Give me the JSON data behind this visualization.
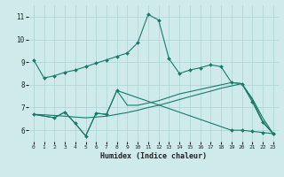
{
  "xlabel": "Humidex (Indice chaleur)",
  "bg_color": "#ceeaea",
  "grid_color": "#aad4d4",
  "line_color": "#1a7a6a",
  "xlim": [
    -0.5,
    23.5
  ],
  "ylim": [
    5.5,
    11.5
  ],
  "yticks": [
    6,
    7,
    8,
    9,
    10,
    11
  ],
  "xticks": [
    0,
    1,
    2,
    3,
    4,
    5,
    6,
    7,
    8,
    9,
    10,
    11,
    12,
    13,
    14,
    15,
    16,
    17,
    18,
    19,
    20,
    21,
    22,
    23
  ],
  "line1_x": [
    0,
    1,
    2,
    3,
    4,
    5,
    6,
    7,
    8,
    9,
    10,
    11,
    12,
    13,
    14,
    15,
    16,
    17,
    18,
    19,
    20,
    21,
    22,
    23
  ],
  "line1_y": [
    9.1,
    8.3,
    8.4,
    8.55,
    8.65,
    8.8,
    8.95,
    9.1,
    9.25,
    9.4,
    9.85,
    11.1,
    10.85,
    9.15,
    8.5,
    8.65,
    8.75,
    8.88,
    8.8,
    8.1,
    8.05,
    7.25,
    6.35,
    5.85
  ],
  "line2_x": [
    0,
    2,
    3,
    4,
    5,
    6,
    7,
    8,
    19,
    20,
    21,
    22,
    23
  ],
  "line2_y": [
    6.7,
    6.55,
    6.8,
    6.3,
    5.75,
    6.75,
    6.7,
    7.75,
    6.0,
    6.0,
    5.95,
    5.9,
    5.85
  ],
  "line3_x": [
    0,
    2,
    3,
    4,
    5,
    6,
    7,
    8,
    9,
    10,
    11,
    12,
    13,
    14,
    15,
    16,
    17,
    18,
    19,
    20,
    21,
    22,
    23
  ],
  "line3_y": [
    6.7,
    6.55,
    6.8,
    6.3,
    5.75,
    6.75,
    6.7,
    7.75,
    7.1,
    7.1,
    7.2,
    7.3,
    7.45,
    7.6,
    7.7,
    7.8,
    7.9,
    8.0,
    8.1,
    8.05,
    7.4,
    6.55,
    5.85
  ],
  "line4_x": [
    0,
    1,
    2,
    3,
    4,
    5,
    6,
    7,
    8,
    9,
    10,
    11,
    12,
    13,
    14,
    15,
    16,
    17,
    18,
    19,
    20,
    21,
    22,
    23
  ],
  "line4_y": [
    6.7,
    6.68,
    6.65,
    6.62,
    6.58,
    6.55,
    6.58,
    6.62,
    6.7,
    6.78,
    6.88,
    7.0,
    7.1,
    7.22,
    7.35,
    7.48,
    7.6,
    7.72,
    7.85,
    7.95,
    8.05,
    7.35,
    6.4,
    5.85
  ]
}
